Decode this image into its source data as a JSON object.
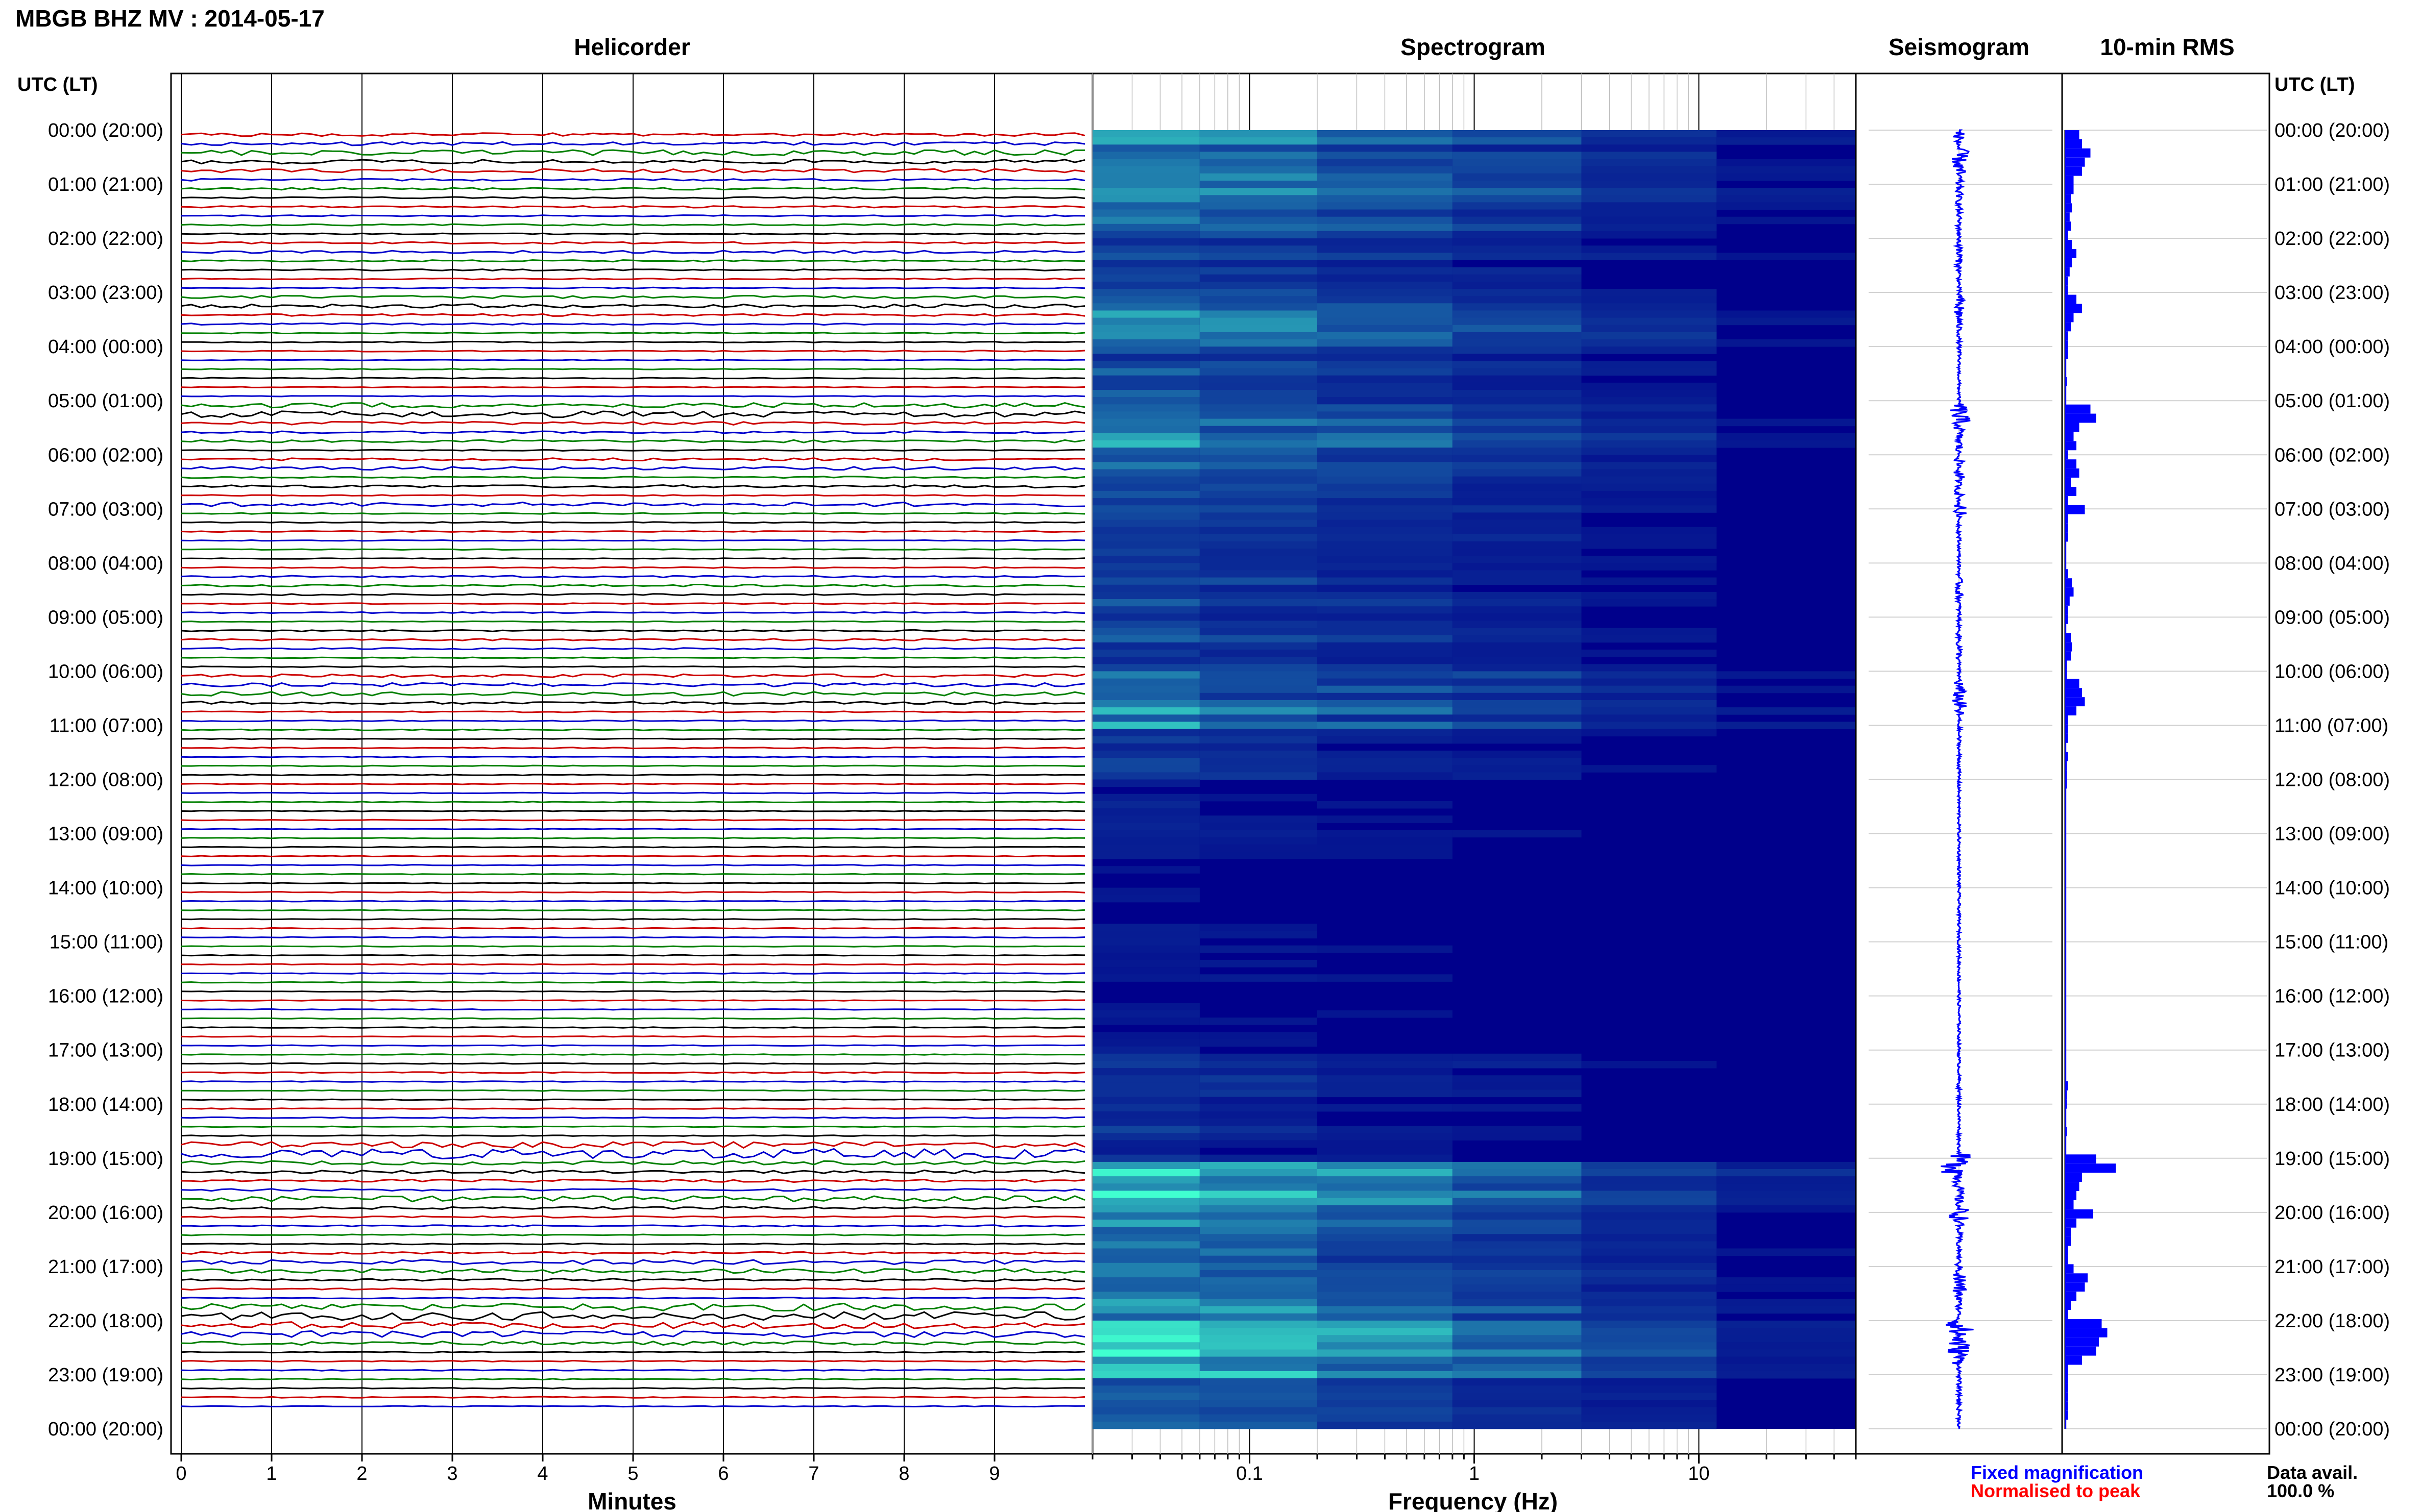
{
  "header": {
    "title": "MBGB BHZ MV : 2014-05-17",
    "utc_label_left": "UTC (LT)",
    "utc_label_right": "UTC (LT)"
  },
  "panels": {
    "helicorder": "Helicorder",
    "spectrogram": "Spectrogram",
    "seismogram": "Seismogram",
    "rms": "10-min RMS"
  },
  "footer": {
    "minutes_label": "Minutes",
    "frequency_label": "Frequency (Hz)",
    "fixed_magnification": "Fixed magnification",
    "normalised_to_peak": "Normalised to peak",
    "data_avail_label": "Data avail.",
    "data_avail_value": "100.0 %"
  },
  "colors": {
    "trace_cycle": [
      "#cc0000",
      "#0000cc",
      "#008000",
      "#000000"
    ],
    "spectrogram_low": "#00008b",
    "spectrogram_high": "#40ffd0",
    "seismogram": "#0000ff",
    "rms_bar": "#0000ff",
    "fixed_magnification": "#0000ff",
    "normalised_to_peak": "#ff0000"
  },
  "chart_data": [
    {
      "type": "line",
      "title": "Helicorder",
      "xlabel": "Minutes",
      "xticks": [
        0,
        1,
        2,
        3,
        4,
        5,
        6,
        7,
        8,
        9
      ],
      "xlim": [
        0,
        10
      ],
      "traces_per_hour": 6,
      "trace_minutes": 10,
      "ylabel": "UTC (LT)",
      "yticks": [
        "00:00 (20:00)",
        "01:00 (21:00)",
        "02:00 (22:00)",
        "03:00 (23:00)",
        "04:00 (00:00)",
        "05:00 (01:00)",
        "06:00 (02:00)",
        "07:00 (03:00)",
        "08:00 (04:00)",
        "09:00 (05:00)",
        "10:00 (06:00)",
        "11:00 (07:00)",
        "12:00 (08:00)",
        "13:00 (09:00)",
        "14:00 (10:00)",
        "15:00 (11:00)",
        "16:00 (12:00)",
        "17:00 (13:00)",
        "18:00 (14:00)",
        "19:00 (15:00)",
        "20:00 (16:00)",
        "21:00 (17:00)",
        "22:00 (18:00)",
        "23:00 (19:00)",
        "00:00 (20:00)"
      ]
    },
    {
      "type": "heatmap",
      "title": "Spectrogram",
      "xlabel": "Frequency (Hz)",
      "xscale": "log",
      "xlim": [
        0.02,
        50
      ],
      "xticks": [
        "0.1",
        "1",
        "10"
      ],
      "ylim_hours": [
        0,
        24
      ],
      "energy_hourly": [
        0.55,
        0.55,
        0.35,
        0.5,
        0.3,
        0.6,
        0.4,
        0.3,
        0.3,
        0.35,
        0.55,
        0.25,
        0.15,
        0.1,
        0.1,
        0.1,
        0.1,
        0.2,
        0.2,
        0.95,
        0.55,
        0.6,
        0.85,
        0.35
      ]
    },
    {
      "type": "line",
      "title": "Seismogram",
      "ylim_hours": [
        0,
        24
      ],
      "color": "#0000ff"
    },
    {
      "type": "bar",
      "title": "10-min RMS",
      "orientation": "horizontal",
      "ylim_hours": [
        0,
        24
      ],
      "values": [
        0.25,
        0.3,
        0.45,
        0.35,
        0.3,
        0.15,
        0.15,
        0.1,
        0.12,
        0.08,
        0.1,
        0.05,
        0.12,
        0.2,
        0.12,
        0.08,
        0.05,
        0.05,
        0.2,
        0.3,
        0.15,
        0.1,
        0.05,
        0.05,
        0.05,
        0.02,
        0.02,
        0.03,
        0.02,
        0.02,
        0.45,
        0.55,
        0.25,
        0.15,
        0.2,
        0.05,
        0.2,
        0.25,
        0.1,
        0.2,
        0.05,
        0.35,
        0.05,
        0.05,
        0.05,
        0.02,
        0.02,
        0.02,
        0.05,
        0.12,
        0.15,
        0.08,
        0.05,
        0.05,
        0.02,
        0.1,
        0.12,
        0.1,
        0.03,
        0.03,
        0.25,
        0.3,
        0.35,
        0.2,
        0.05,
        0.05,
        0.05,
        0.02,
        0.05,
        0.03,
        0.03,
        0.03,
        0.02,
        0.02,
        0.02,
        0.02,
        0.02,
        0.02,
        0.02,
        0.02,
        0.02,
        0.02,
        0.02,
        0.02,
        0.02,
        0.02,
        0.02,
        0.02,
        0.02,
        0.02,
        0.02,
        0.02,
        0.02,
        0.02,
        0.02,
        0.02,
        0.02,
        0.02,
        0.02,
        0.02,
        0.02,
        0.02,
        0.02,
        0.02,
        0.05,
        0.03,
        0.03,
        0.02,
        0.02,
        0.03,
        0.02,
        0.02,
        0.55,
        0.9,
        0.3,
        0.25,
        0.2,
        0.15,
        0.5,
        0.2,
        0.1,
        0.1,
        0.05,
        0.05,
        0.15,
        0.4,
        0.35,
        0.2,
        0.1,
        0.05,
        0.65,
        0.75,
        0.6,
        0.55,
        0.3,
        0.05,
        0.05,
        0.05,
        0.05,
        0.05,
        0.05,
        0.02
      ]
    }
  ]
}
